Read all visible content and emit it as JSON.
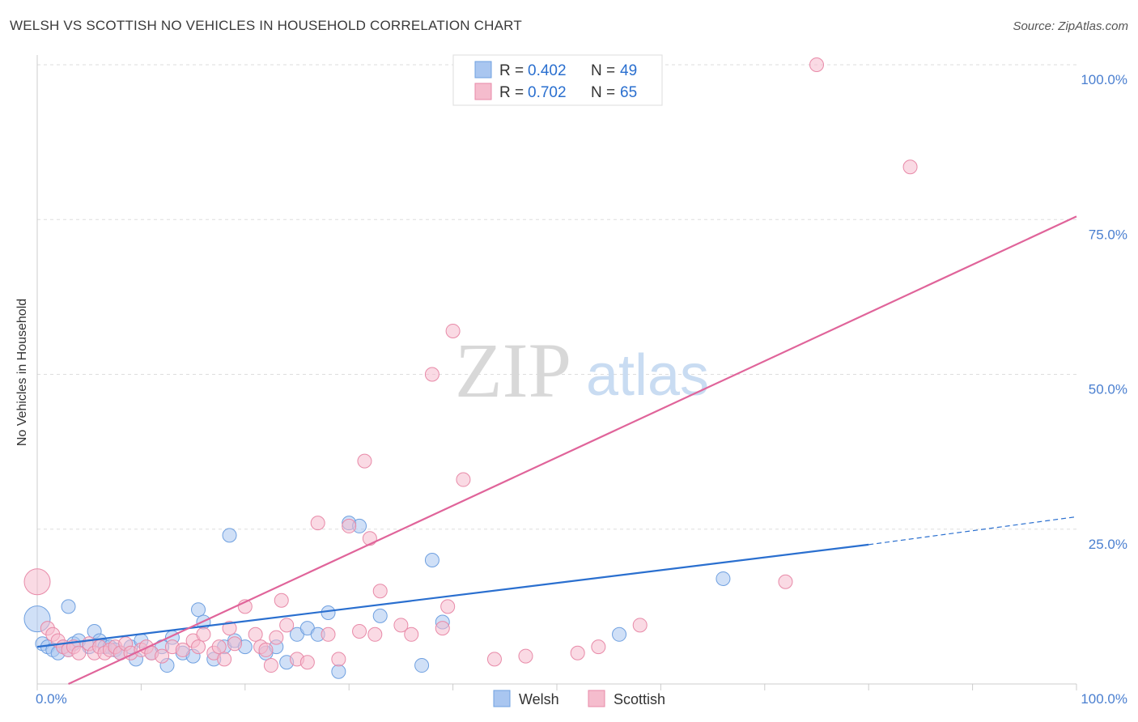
{
  "header": {
    "title": "WELSH VS SCOTTISH NO VEHICLES IN HOUSEHOLD CORRELATION CHART",
    "source": "Source: ZipAtlas.com"
  },
  "watermark": {
    "zip": "ZIP",
    "atlas": "atlas"
  },
  "chart_data": {
    "type": "scatter",
    "title": "WELSH VS SCOTTISH NO VEHICLES IN HOUSEHOLD CORRELATION CHART",
    "xlabel": "",
    "ylabel": "No Vehicles in Household",
    "xlim": [
      0,
      100
    ],
    "ylim": [
      0,
      100
    ],
    "x_tick_labels": [
      "0.0%",
      "100.0%"
    ],
    "y_tick_labels": [
      "100.0%",
      "75.0%",
      "50.0%",
      "25.0%"
    ],
    "y_ticks": [
      100,
      75,
      50,
      25
    ],
    "grid": true,
    "legend_position": "top-center",
    "stats": [
      {
        "series": "Welsh",
        "r_label": "R =",
        "r_value": "0.402",
        "n_label": "N =",
        "n_value": "49"
      },
      {
        "series": "Scottish",
        "r_label": "R =",
        "r_value": "0.702",
        "n_label": "N =",
        "n_value": "65"
      }
    ],
    "series": [
      {
        "name": "Welsh",
        "color": "#6fa0e0",
        "fill": "#a9c6f0",
        "line_color": "#2a6fcf",
        "trend": {
          "x0": 0,
          "y0": 6,
          "x1": 80,
          "y1": 22.5,
          "dashed_to_x": 100,
          "dashed_to_y": 27
        },
        "points": [
          [
            0,
            10.5
          ],
          [
            0.5,
            6.5
          ],
          [
            1,
            6
          ],
          [
            1.5,
            5.5
          ],
          [
            2,
            5
          ],
          [
            2.5,
            6
          ],
          [
            3,
            5.5
          ],
          [
            3.5,
            6.5
          ],
          [
            4,
            7
          ],
          [
            5,
            6
          ],
          [
            5.5,
            8.5
          ],
          [
            6,
            7
          ],
          [
            6.5,
            6
          ],
          [
            7,
            6
          ],
          [
            7.5,
            5.5
          ],
          [
            8,
            5
          ],
          [
            9,
            6
          ],
          [
            9.5,
            4
          ],
          [
            10,
            7
          ],
          [
            11,
            5
          ],
          [
            12,
            6
          ],
          [
            12.5,
            3
          ],
          [
            13,
            7.5
          ],
          [
            14,
            5
          ],
          [
            15,
            4.5
          ],
          [
            15.5,
            12
          ],
          [
            16,
            10
          ],
          [
            17,
            4
          ],
          [
            18,
            6
          ],
          [
            18.5,
            24
          ],
          [
            19,
            7
          ],
          [
            20,
            6
          ],
          [
            22,
            5
          ],
          [
            23,
            6
          ],
          [
            24,
            3.5
          ],
          [
            25,
            8
          ],
          [
            26,
            9
          ],
          [
            27,
            8
          ],
          [
            28,
            11.5
          ],
          [
            29,
            2
          ],
          [
            30,
            26
          ],
          [
            31,
            25.5
          ],
          [
            33,
            11
          ],
          [
            37,
            3
          ],
          [
            38,
            20
          ],
          [
            39,
            10
          ],
          [
            56,
            8
          ],
          [
            66,
            17
          ],
          [
            3,
            12.5
          ]
        ]
      },
      {
        "name": "Scottish",
        "color": "#e88aa8",
        "fill": "#f5bccd",
        "line_color": "#e0649a",
        "trend": {
          "x0": 3,
          "y0": 0,
          "x1": 100,
          "y1": 75.5
        },
        "points": [
          [
            0,
            16.5
          ],
          [
            1,
            9
          ],
          [
            1.5,
            8
          ],
          [
            2,
            7
          ],
          [
            2.5,
            6
          ],
          [
            3,
            5.5
          ],
          [
            3.5,
            6
          ],
          [
            4,
            5
          ],
          [
            5,
            6.5
          ],
          [
            5.5,
            5
          ],
          [
            6,
            6
          ],
          [
            6.5,
            5
          ],
          [
            7,
            5.5
          ],
          [
            7.5,
            6
          ],
          [
            8,
            5
          ],
          [
            8.5,
            6.5
          ],
          [
            9,
            5
          ],
          [
            10,
            5.5
          ],
          [
            10.5,
            6
          ],
          [
            11,
            5
          ],
          [
            12,
            4.5
          ],
          [
            13,
            6
          ],
          [
            14,
            5.5
          ],
          [
            15,
            7
          ],
          [
            15.5,
            6
          ],
          [
            16,
            8
          ],
          [
            17,
            5
          ],
          [
            17.5,
            6
          ],
          [
            18,
            4
          ],
          [
            18.5,
            9
          ],
          [
            19,
            6.5
          ],
          [
            20,
            12.5
          ],
          [
            21,
            8
          ],
          [
            21.5,
            6
          ],
          [
            22,
            5.5
          ],
          [
            22.5,
            3
          ],
          [
            23,
            7.5
          ],
          [
            23.5,
            13.5
          ],
          [
            24,
            9.5
          ],
          [
            25,
            4
          ],
          [
            26,
            3.5
          ],
          [
            27,
            26
          ],
          [
            28,
            8
          ],
          [
            29,
            4
          ],
          [
            30,
            25.5
          ],
          [
            31,
            8.5
          ],
          [
            31.5,
            36
          ],
          [
            32,
            23.5
          ],
          [
            32.5,
            8
          ],
          [
            33,
            15
          ],
          [
            35,
            9.5
          ],
          [
            36,
            8
          ],
          [
            38,
            50
          ],
          [
            39,
            9
          ],
          [
            39.5,
            12.5
          ],
          [
            40,
            57
          ],
          [
            41,
            33
          ],
          [
            44,
            4
          ],
          [
            47,
            4.5
          ],
          [
            52,
            5
          ],
          [
            58,
            9.5
          ],
          [
            72,
            16.5
          ],
          [
            75,
            100
          ],
          [
            84,
            83.5
          ],
          [
            54,
            6
          ]
        ]
      }
    ]
  },
  "legend": {
    "items": [
      {
        "label": "Welsh"
      },
      {
        "label": "Scottish"
      }
    ]
  }
}
